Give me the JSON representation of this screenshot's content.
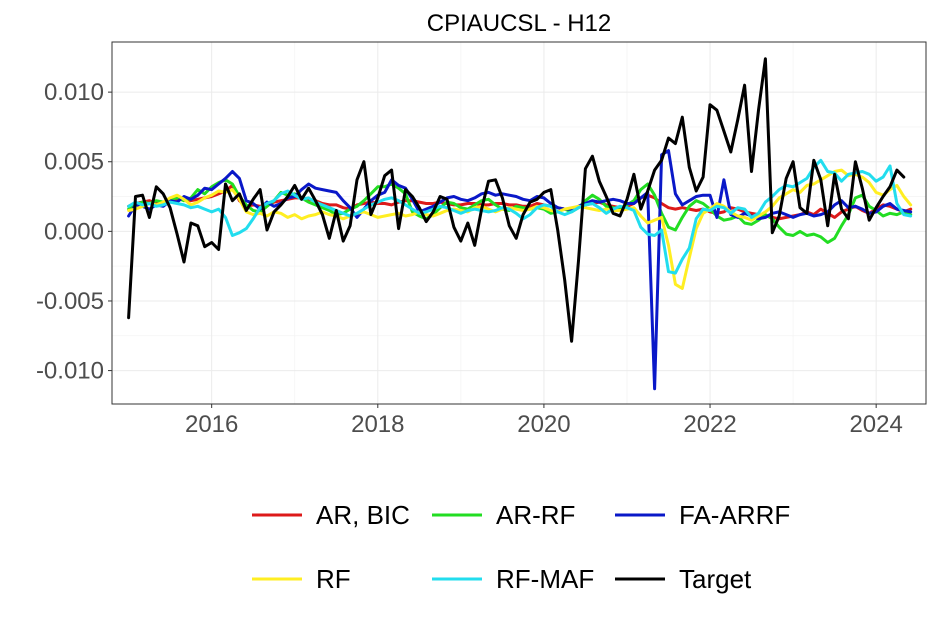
{
  "chart_data": {
    "type": "line",
    "title": "CPIAUCSL - H12",
    "xlabel": "",
    "ylabel": "",
    "xlim": [
      2014.8,
      2024.6
    ],
    "ylim": [
      -0.0124,
      0.0136
    ],
    "x_ticks": [
      2016,
      2018,
      2020,
      2022,
      2024
    ],
    "x_tick_labels": [
      "2016",
      "2018",
      "2020",
      "2022",
      "2024"
    ],
    "y_ticks": [
      -0.01,
      -0.005,
      0,
      0.005,
      0.01
    ],
    "y_tick_labels": [
      "-0.010",
      "-0.005",
      "0.000",
      "0.005",
      "0.010"
    ],
    "grid": true,
    "legend_position": "bottom",
    "x_start": 2015.0,
    "x_step": 0.08333,
    "series": [
      {
        "name": "AR, BIC",
        "color": "#dd1a1a",
        "values": [
          0.0018,
          0.002,
          0.0021,
          0.0022,
          0.002,
          0.0021,
          0.0022,
          0.0023,
          0.0024,
          0.0022,
          0.0023,
          0.0024,
          0.0025,
          0.0027,
          0.0029,
          0.0033,
          0.0022,
          0.0018,
          0.0019,
          0.0018,
          0.0019,
          0.0021,
          0.0022,
          0.0023,
          0.0024,
          0.0024,
          0.0023,
          0.0022,
          0.002,
          0.0019,
          0.0019,
          0.0017,
          0.0016,
          0.0019,
          0.002,
          0.0021,
          0.002,
          0.002,
          0.0019,
          0.0021,
          0.0022,
          0.0022,
          0.0021,
          0.002,
          0.002,
          0.0021,
          0.002,
          0.0019,
          0.0019,
          0.002,
          0.002,
          0.0019,
          0.0019,
          0.002,
          0.002,
          0.0019,
          0.0019,
          0.0018,
          0.0018,
          0.002,
          0.0019,
          0.0018,
          0.0017,
          0.0016,
          0.0015,
          0.0018,
          0.0019,
          0.002,
          0.0021,
          0.0019,
          0.0018,
          0.0017,
          0.0018,
          0.002,
          0.0024,
          0.0026,
          0.0024,
          0.002,
          0.0017,
          0.0016,
          0.0017,
          0.0016,
          0.0015,
          0.0016,
          0.0014,
          0.0013,
          0.0014,
          0.0017,
          0.0016,
          0.0014,
          0.0013,
          0.0012,
          0.0011,
          0.001,
          0.0009,
          0.001,
          0.0011,
          0.0012,
          0.0014,
          0.0012,
          0.0016,
          0.0013,
          0.001,
          0.0014,
          0.0016,
          0.0018,
          0.0015,
          0.0013,
          0.0016,
          0.0019,
          0.0018,
          0.0016,
          0.0014,
          0.0016
        ]
      },
      {
        "name": "AR-RF",
        "color": "#22dd22",
        "values": [
          0.0016,
          0.0019,
          0.0021,
          0.002,
          0.0022,
          0.0021,
          0.0023,
          0.0024,
          0.0022,
          0.0024,
          0.003,
          0.0027,
          0.0032,
          0.0035,
          0.0037,
          0.0034,
          0.0025,
          0.0019,
          0.0015,
          0.0014,
          0.0018,
          0.0022,
          0.0028,
          0.0026,
          0.0027,
          0.0024,
          0.0021,
          0.0019,
          0.0017,
          0.0015,
          0.0012,
          0.0013,
          0.0016,
          0.0018,
          0.0022,
          0.0027,
          0.0032,
          0.0032,
          0.0034,
          0.0031,
          0.0027,
          0.0014,
          0.0011,
          0.0009,
          0.0012,
          0.0017,
          0.0021,
          0.002,
          0.0017,
          0.0016,
          0.0019,
          0.0022,
          0.0023,
          0.0019,
          0.0016,
          0.0015,
          0.0018,
          0.0017,
          0.0016,
          0.0017,
          0.0016,
          0.0013,
          0.0014,
          0.0016,
          0.0014,
          0.0017,
          0.0022,
          0.0026,
          0.0023,
          0.0018,
          0.0017,
          0.0016,
          0.0019,
          0.0022,
          0.003,
          0.0034,
          0.0026,
          0.0013,
          0.0003,
          0.0001,
          0.001,
          0.0018,
          0.0022,
          0.002,
          0.0016,
          0.0011,
          0.0008,
          0.0009,
          0.0011,
          0.0006,
          0.0005,
          0.0008,
          0.0012,
          0.0009,
          0.0003,
          -0.0002,
          -0.0003,
          0.0,
          -0.0003,
          -0.0002,
          -0.0004,
          -0.0008,
          -0.0005,
          0.0004,
          0.0012,
          0.0024,
          0.0026,
          0.0018,
          0.0015,
          0.0011,
          0.0013,
          0.0012,
          0.0014,
          0.0012
        ]
      },
      {
        "name": "FA-ARRF",
        "color": "#0a18c8",
        "values": [
          0.0011,
          0.0019,
          0.0018,
          0.0016,
          0.0019,
          0.0018,
          0.0022,
          0.0021,
          0.0025,
          0.0023,
          0.0026,
          0.0031,
          0.003,
          0.0034,
          0.0038,
          0.0043,
          0.0038,
          0.0022,
          0.002,
          0.0016,
          0.0021,
          0.0018,
          0.002,
          0.0024,
          0.0025,
          0.003,
          0.0034,
          0.0031,
          0.003,
          0.0029,
          0.0028,
          0.0022,
          0.0017,
          0.001,
          0.0016,
          0.0022,
          0.0026,
          0.0028,
          0.0037,
          0.0033,
          0.0031,
          0.0023,
          0.0014,
          0.0016,
          0.0018,
          0.0021,
          0.0024,
          0.0025,
          0.0023,
          0.0022,
          0.0024,
          0.0027,
          0.0028,
          0.0026,
          0.0027,
          0.0026,
          0.0025,
          0.0023,
          0.0022,
          0.0025,
          0.0024,
          0.002,
          0.0017,
          0.0016,
          0.0016,
          0.0018,
          0.002,
          0.0022,
          0.0021,
          0.0022,
          0.0023,
          0.0022,
          0.002,
          0.002,
          0.0024,
          0.0028,
          -0.0113,
          0.0055,
          0.0058,
          0.0027,
          0.0019,
          0.0022,
          0.0025,
          0.0026,
          0.0026,
          0.001,
          0.0037,
          0.0012,
          0.001,
          0.0013,
          0.0011,
          0.0009,
          0.001,
          0.0013,
          0.0014,
          0.0012,
          0.001,
          0.0012,
          0.0013,
          0.0011,
          0.0012,
          0.0014,
          0.0019,
          0.0022,
          0.0017,
          0.0018,
          0.0016,
          0.0013,
          0.0014,
          0.0018,
          0.002,
          0.0016,
          0.0015,
          0.0014
        ]
      },
      {
        "name": "RF",
        "color": "#ffee22",
        "values": [
          0.0015,
          0.0016,
          0.0018,
          0.002,
          0.0019,
          0.0021,
          0.0024,
          0.0026,
          0.0023,
          0.0019,
          0.0021,
          0.0024,
          0.0026,
          0.0029,
          0.0028,
          0.003,
          0.0023,
          0.0014,
          0.0012,
          0.0013,
          0.0011,
          0.0014,
          0.0013,
          0.001,
          0.0012,
          0.0009,
          0.0011,
          0.0012,
          0.0014,
          0.0012,
          0.0011,
          0.0009,
          0.0011,
          0.0013,
          0.0014,
          0.0012,
          0.001,
          0.0011,
          0.0012,
          0.0013,
          0.0011,
          0.0012,
          0.0014,
          0.0012,
          0.0011,
          0.0013,
          0.0015,
          0.0016,
          0.0015,
          0.0014,
          0.0017,
          0.0018,
          0.0016,
          0.0014,
          0.0016,
          0.0017,
          0.0016,
          0.0015,
          0.0016,
          0.0018,
          0.0017,
          0.0015,
          0.0014,
          0.0016,
          0.0017,
          0.0018,
          0.0017,
          0.0016,
          0.0015,
          0.0016,
          0.0015,
          0.0015,
          0.0016,
          0.0017,
          0.0011,
          0.0006,
          0.0008,
          0.001,
          -0.001,
          -0.0038,
          -0.0041,
          -0.0019,
          0.0002,
          0.0013,
          0.0016,
          0.002,
          0.0018,
          0.0014,
          0.0011,
          0.001,
          0.0008,
          0.0011,
          0.0014,
          0.0018,
          0.0024,
          0.0027,
          0.003,
          0.0028,
          0.0033,
          0.0034,
          0.0037,
          0.004,
          0.0043,
          0.0044,
          0.004,
          0.0041,
          0.0039,
          0.0035,
          0.0028,
          0.0026,
          0.003,
          0.0033,
          0.0025,
          0.0019
        ]
      },
      {
        "name": "RF-MAF",
        "color": "#22ddee",
        "values": [
          0.0018,
          0.0021,
          0.0019,
          0.002,
          0.0018,
          0.0019,
          0.0021,
          0.002,
          0.0019,
          0.0017,
          0.0018,
          0.0016,
          0.0014,
          0.0016,
          0.001,
          -0.0003,
          -0.0001,
          0.0002,
          0.0009,
          0.0017,
          0.002,
          0.0022,
          0.0027,
          0.0029,
          0.0026,
          0.0023,
          0.0024,
          0.0021,
          0.0019,
          0.0017,
          0.0015,
          0.0013,
          0.0011,
          0.0013,
          0.0016,
          0.0019,
          0.0021,
          0.0023,
          0.0024,
          0.0022,
          0.0019,
          0.0016,
          0.0013,
          0.0014,
          0.0016,
          0.0018,
          0.0017,
          0.0015,
          0.0013,
          0.0015,
          0.0016,
          0.0015,
          0.0014,
          0.0015,
          0.0017,
          0.0016,
          0.0013,
          0.0009,
          0.0012,
          0.0017,
          0.0019,
          0.0018,
          0.0014,
          0.0012,
          0.0014,
          0.0017,
          0.0019,
          0.002,
          0.0017,
          0.0013,
          0.0016,
          0.0018,
          0.0017,
          0.0015,
          0.0003,
          -0.0002,
          -0.0003,
          0.0001,
          -0.0029,
          -0.003,
          -0.002,
          -0.0012,
          0.0009,
          0.0016,
          0.0015,
          0.0018,
          0.0017,
          0.0013,
          0.0017,
          0.0016,
          0.001,
          0.0013,
          0.0021,
          0.0025,
          0.003,
          0.0033,
          0.0032,
          0.0035,
          0.0038,
          0.0046,
          0.0051,
          0.0043,
          0.0042,
          0.0036,
          0.0041,
          0.0042,
          0.0043,
          0.0041,
          0.0036,
          0.0039,
          0.0047,
          0.002,
          0.0012,
          0.0011
        ]
      },
      {
        "name": "Target",
        "color": "#000000",
        "values": [
          -0.0062,
          0.0025,
          0.0026,
          0.001,
          0.0032,
          0.0027,
          0.0017,
          -0.0002,
          -0.0022,
          0.0006,
          0.0004,
          -0.0011,
          -0.0008,
          -0.0013,
          0.0034,
          0.0022,
          0.0027,
          0.0015,
          0.0023,
          0.003,
          0.0001,
          0.0014,
          0.0019,
          0.0025,
          0.0033,
          0.0023,
          0.0031,
          0.0022,
          0.0012,
          -0.0005,
          0.0015,
          -0.0007,
          0.0004,
          0.0037,
          0.005,
          0.0012,
          0.0024,
          0.004,
          0.0044,
          0.0002,
          0.003,
          0.0025,
          0.0017,
          0.0007,
          0.0014,
          0.0025,
          0.0023,
          0.0003,
          -0.0007,
          0.0006,
          -0.001,
          0.0016,
          0.0036,
          0.0037,
          0.0024,
          0.0004,
          -0.0005,
          0.0012,
          0.0021,
          0.0023,
          0.0028,
          0.003,
          0.0001,
          -0.0035,
          -0.0079,
          -0.0021,
          0.0045,
          0.0054,
          0.0036,
          0.0025,
          0.0013,
          0.0011,
          0.0023,
          0.0041,
          0.0016,
          0.0029,
          0.0044,
          0.0051,
          0.0067,
          0.0063,
          0.0082,
          0.0046,
          0.0029,
          0.0039,
          0.0091,
          0.0087,
          0.0072,
          0.0057,
          0.008,
          0.0105,
          0.0043,
          0.0087,
          0.0124,
          -0.0001,
          0.0011,
          0.0038,
          0.005,
          0.0017,
          0.0013,
          0.0051,
          0.0037,
          0.0004,
          0.0041,
          0.0016,
          0.0009,
          0.005,
          0.0031,
          0.0008,
          0.0017,
          0.0025,
          0.0032,
          0.0044,
          0.0039
        ]
      }
    ]
  }
}
